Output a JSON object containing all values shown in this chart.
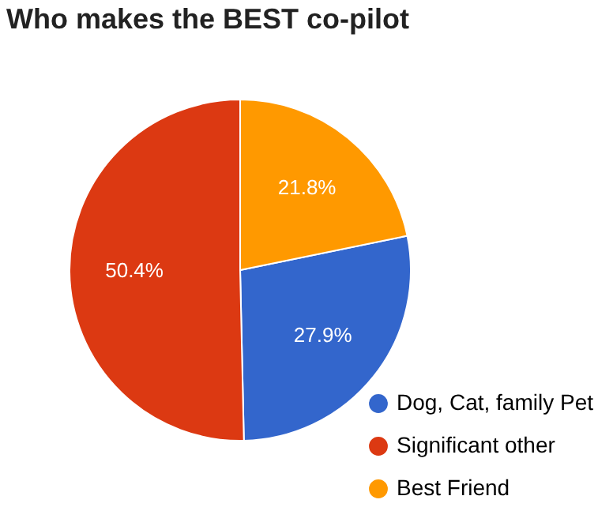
{
  "chart_data": {
    "type": "pie",
    "title": "Who makes the BEST co-pilot",
    "categories": [
      "Dog, Cat, family Pet",
      "Significant other",
      "Best Friend"
    ],
    "values": [
      27.9,
      50.4,
      21.8
    ],
    "colors": [
      "#3366cc",
      "#dc3912",
      "#ff9900"
    ],
    "value_labels": [
      "27.9%",
      "50.4%",
      "21.8%"
    ],
    "legend": "bottom right"
  }
}
